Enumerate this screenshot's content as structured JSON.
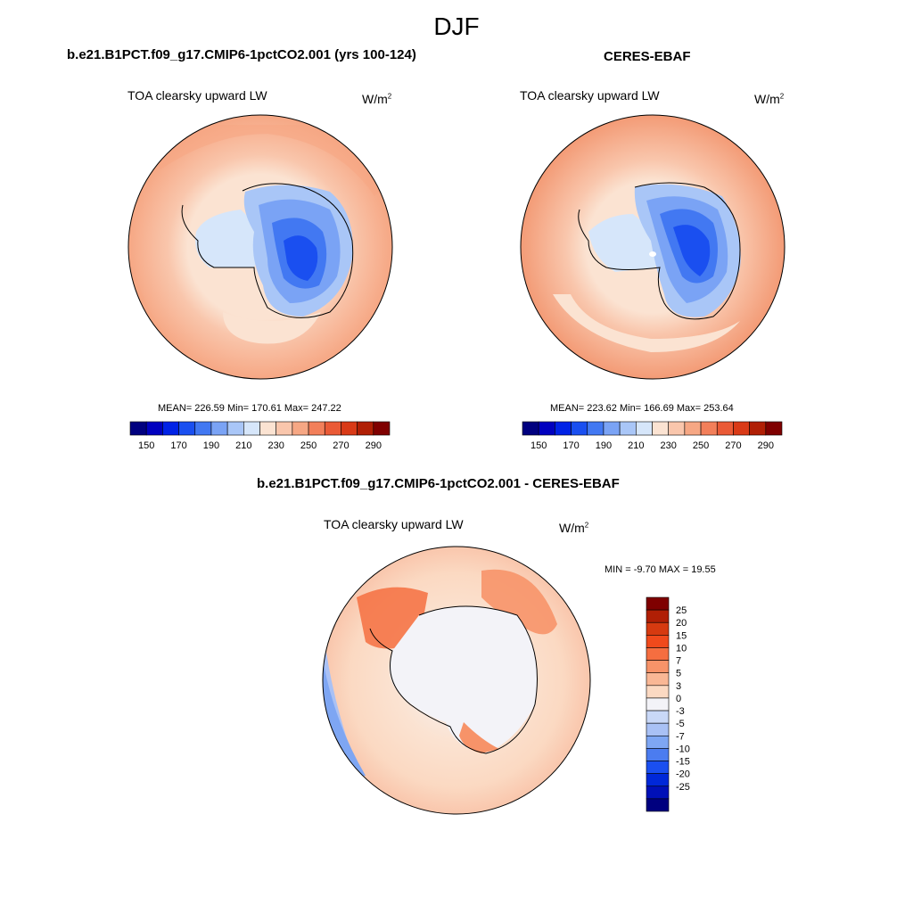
{
  "figure_title": "DJF",
  "panels": [
    {
      "title": "b.e21.B1PCT.f09_g17.CMIP6-1pctCO2.001 (yrs 100-124)",
      "variable": "TOA clearsky upward LW",
      "units_base": "W/m",
      "units_exp": "2",
      "stats": "MEAN= 226.59  Min= 170.61  Max= 247.22"
    },
    {
      "title": "CERES-EBAF",
      "variable": "TOA clearsky upward LW",
      "units_base": "W/m",
      "units_exp": "2",
      "stats": "MEAN= 223.62  Min= 166.69  Max= 253.64"
    },
    {
      "title": "b.e21.B1PCT.f09_g17.CMIP6-1pctCO2.001 - CERES-EBAF",
      "variable": "TOA clearsky upward LW",
      "units_base": "W/m",
      "units_exp": "2",
      "stats": "MIN =  -9.70 MAX =  19.55"
    }
  ],
  "colorbar_abs": {
    "colors": [
      "#00007f",
      "#0000bf",
      "#0022e6",
      "#1a4ff0",
      "#4278f2",
      "#7aa3f5",
      "#a9c6f7",
      "#d6e6fa",
      "#fbe3d2",
      "#f9c6ac",
      "#f6a784",
      "#f27f5a",
      "#ea5a36",
      "#d93a17",
      "#b01f05",
      "#7f0000"
    ],
    "tick_labels": [
      "150",
      "170",
      "190",
      "210",
      "230",
      "250",
      "270",
      "290"
    ]
  },
  "colorbar_diff": {
    "colors": [
      "#7f0000",
      "#b01f05",
      "#d63a10",
      "#f04a1c",
      "#f56e40",
      "#f79369",
      "#f9b795",
      "#fbd9c2",
      "#f3f3f8",
      "#c9d8f7",
      "#a9c1f5",
      "#7ea6f3",
      "#4b7cf0",
      "#1a4ff0",
      "#0028d9",
      "#0010b8",
      "#00007f"
    ],
    "tick_labels": [
      "25",
      "20",
      "15",
      "10",
      "7",
      "5",
      "3",
      "0",
      "-3",
      "-5",
      "-7",
      "-10",
      "-15",
      "-20",
      "-25"
    ]
  }
}
